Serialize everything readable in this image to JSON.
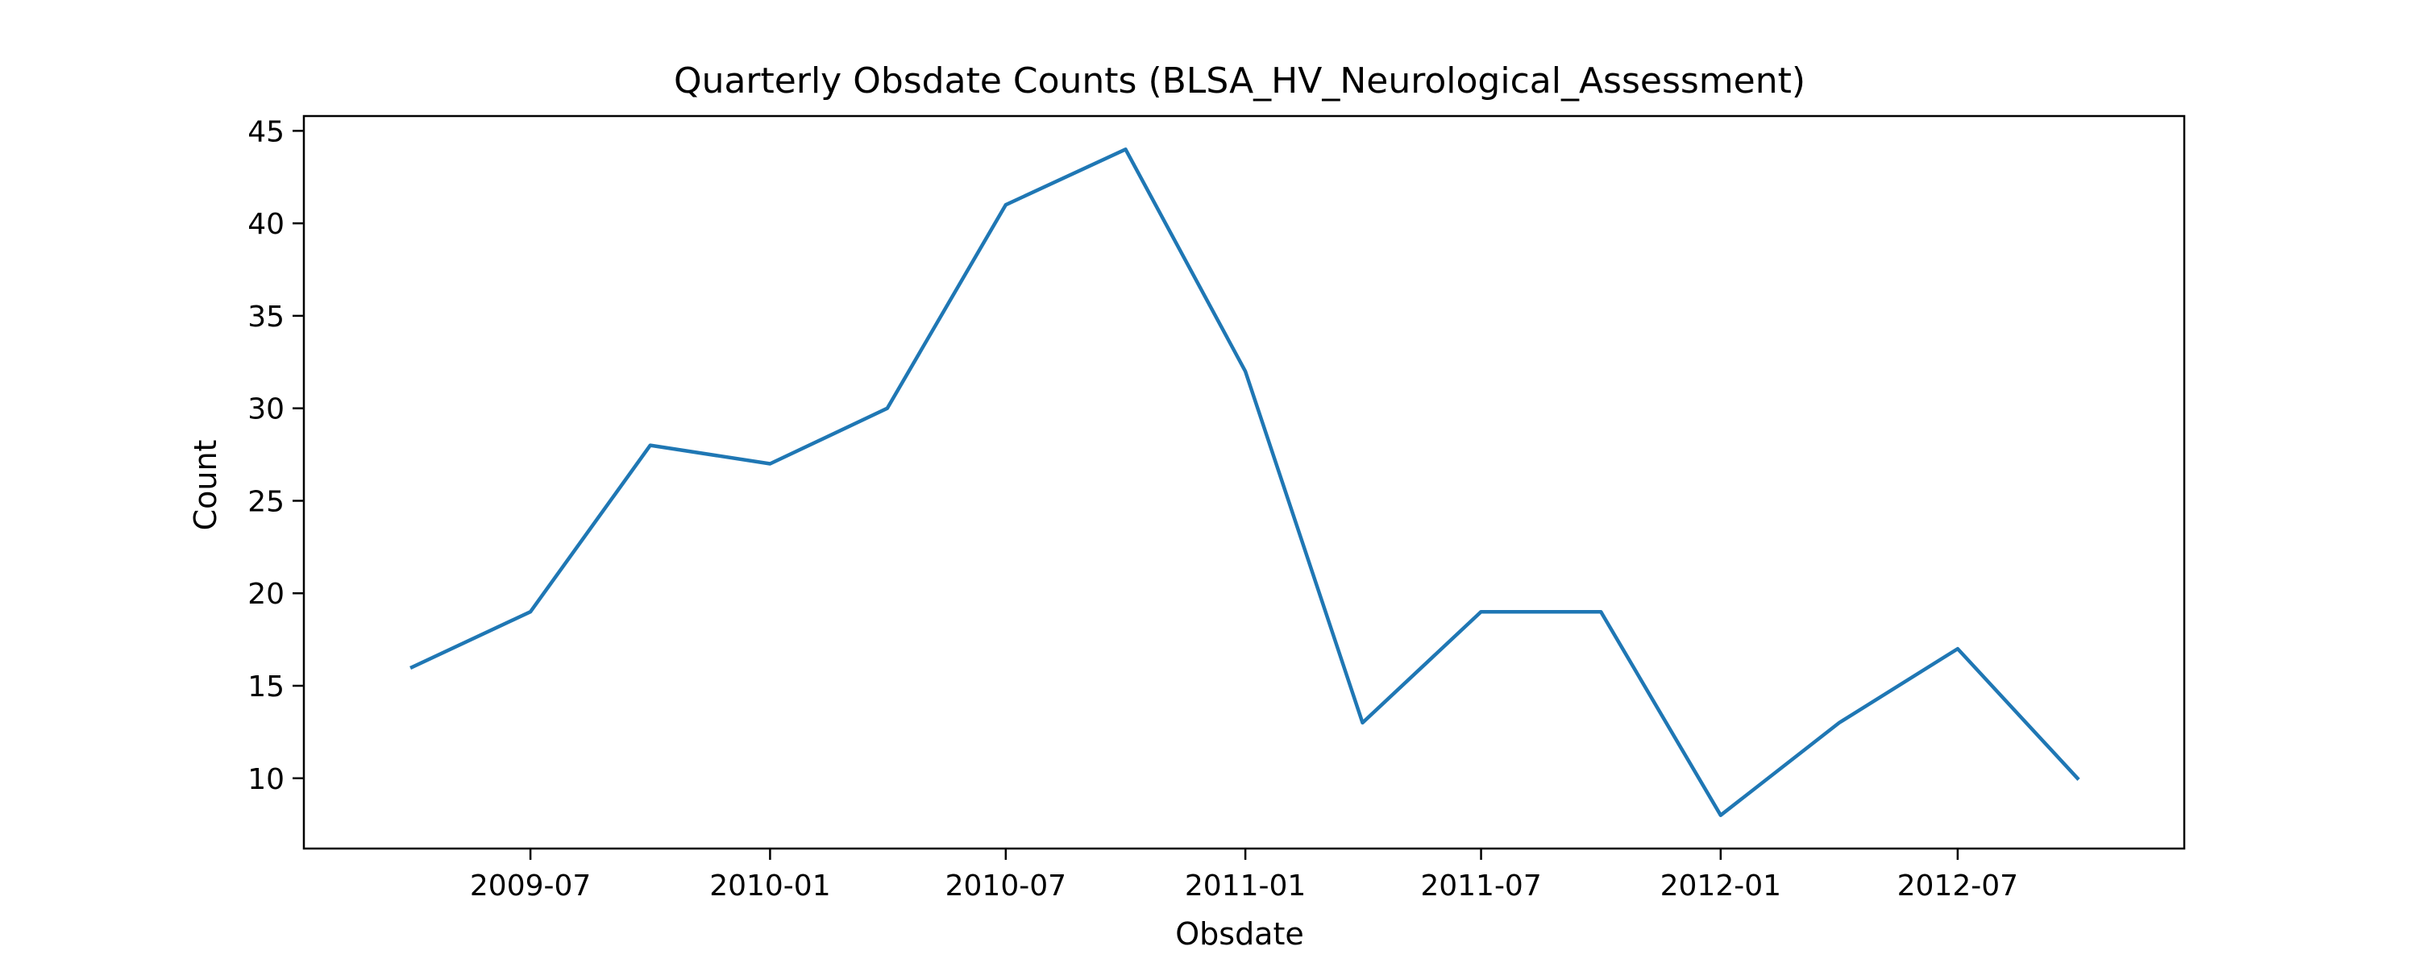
{
  "chart_data": {
    "type": "line",
    "title": "Quarterly Obsdate Counts (BLSA_HV_Neurological_Assessment)",
    "xlabel": "Obsdate",
    "ylabel": "Count",
    "x": [
      "2009-04-01",
      "2009-07-01",
      "2009-10-01",
      "2010-01-01",
      "2010-04-01",
      "2010-07-01",
      "2010-10-01",
      "2011-01-01",
      "2011-04-01",
      "2011-07-01",
      "2011-10-01",
      "2012-01-01",
      "2012-04-01",
      "2012-07-01",
      "2012-10-01"
    ],
    "series": [
      {
        "values": [
          16,
          19,
          28,
          27,
          30,
          41,
          44,
          32,
          13,
          19,
          19,
          8,
          13,
          17,
          10
        ],
        "color": "#1f77b4"
      }
    ],
    "xlim": [
      "2009-01-08",
      "2012-12-22"
    ],
    "ylim": [
      6.2,
      45.8
    ],
    "xticks": [
      {
        "date": "2009-07-01",
        "label": "2009-07"
      },
      {
        "date": "2010-01-01",
        "label": "2010-01"
      },
      {
        "date": "2010-07-01",
        "label": "2010-07"
      },
      {
        "date": "2011-01-01",
        "label": "2011-01"
      },
      {
        "date": "2011-07-01",
        "label": "2011-07"
      },
      {
        "date": "2012-01-01",
        "label": "2012-01"
      },
      {
        "date": "2012-07-01",
        "label": "2012-07"
      }
    ],
    "yticks": [
      10,
      15,
      20,
      25,
      30,
      35,
      40,
      45
    ],
    "grid": false,
    "legend": "none"
  }
}
